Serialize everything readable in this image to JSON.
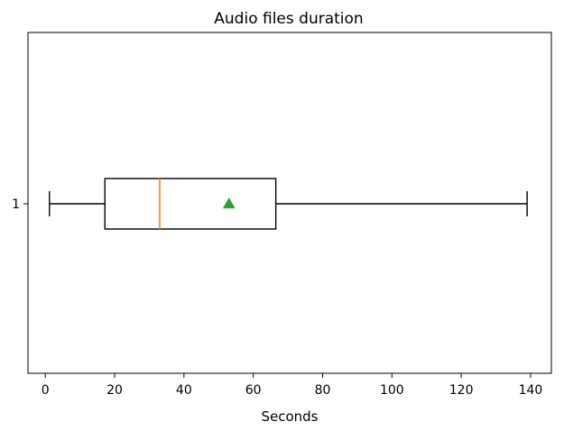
{
  "chart_data": {
    "type": "boxplot",
    "orientation": "horizontal",
    "title": "Audio files duration",
    "xlabel": "Seconds",
    "ylabel": "",
    "xlim": [
      -5,
      146
    ],
    "xticks": [
      0,
      20,
      40,
      60,
      80,
      100,
      120,
      140
    ],
    "yticks": [
      "1"
    ],
    "grid": false,
    "box": {
      "label": "1",
      "whisker_low": 1.2,
      "q1": 17.2,
      "median": 33.0,
      "q3": 66.5,
      "whisker_high": 139.0,
      "mean": 53.0
    },
    "colors": {
      "box": "#000000",
      "median": "#ff7f0e",
      "mean_marker": "#2ca02c"
    }
  }
}
